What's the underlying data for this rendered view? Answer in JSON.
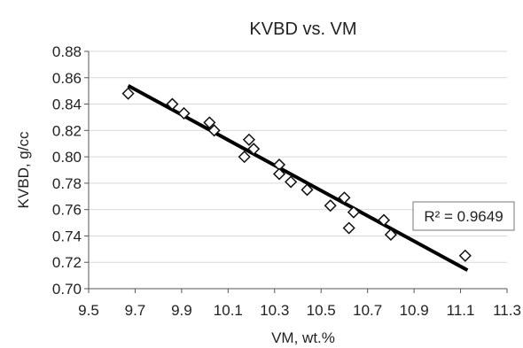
{
  "chart_data": {
    "type": "scatter",
    "title": "KVBD vs. VM",
    "xlabel": "VM, wt.%",
    "ylabel": "KVBD, g/cc",
    "xlim": [
      9.5,
      11.3
    ],
    "ylim": [
      0.7,
      0.88
    ],
    "x_ticks": [
      "9.5",
      "9.7",
      "9.9",
      "10.1",
      "10.3",
      "10.5",
      "10.7",
      "10.9",
      "11.1",
      "11.3"
    ],
    "y_ticks": [
      "0.70",
      "0.72",
      "0.74",
      "0.76",
      "0.78",
      "0.80",
      "0.82",
      "0.84",
      "0.86",
      "0.88"
    ],
    "grid": "horizontal",
    "marker": "diamond",
    "series": [
      {
        "points": [
          [
            9.67,
            0.848
          ],
          [
            9.86,
            0.84
          ],
          [
            9.91,
            0.833
          ],
          [
            10.02,
            0.826
          ],
          [
            10.04,
            0.82
          ],
          [
            10.17,
            0.8
          ],
          [
            10.19,
            0.813
          ],
          [
            10.21,
            0.806
          ],
          [
            10.32,
            0.794
          ],
          [
            10.32,
            0.787
          ],
          [
            10.37,
            0.781
          ],
          [
            10.44,
            0.775
          ],
          [
            10.54,
            0.763
          ],
          [
            10.6,
            0.769
          ],
          [
            10.62,
            0.746
          ],
          [
            10.64,
            0.758
          ],
          [
            10.77,
            0.752
          ],
          [
            10.8,
            0.741
          ],
          [
            11.12,
            0.725
          ]
        ]
      }
    ],
    "trendline": {
      "type": "linear",
      "x": [
        9.67,
        11.13
      ],
      "y": [
        0.854,
        0.714
      ]
    },
    "annotation": "R² = 0.9649",
    "colors": {
      "marker": "#111111",
      "trendline": "#000000",
      "grid": "#d9d9d9",
      "axis": "#555555"
    }
  }
}
